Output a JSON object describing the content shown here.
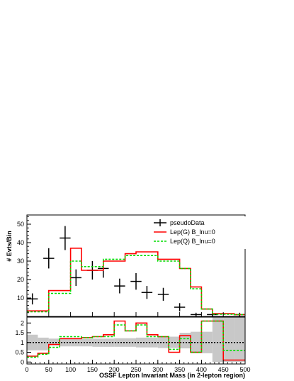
{
  "chart_data": {
    "type": "line",
    "xlabel": "OSSF Lepton Invariant Mass (in 2-lepton region)",
    "ylabel": "# Evts/Bin",
    "bin_edges": [
      0,
      25,
      50,
      75,
      100,
      125,
      150,
      175,
      200,
      225,
      250,
      275,
      300,
      325,
      350,
      375,
      400,
      425,
      450,
      475,
      500
    ],
    "x_ticks": [
      "0",
      "50",
      "100",
      "150",
      "200",
      "250",
      "300",
      "350",
      "400",
      "450",
      "500"
    ],
    "top_panel": {
      "ylim": [
        0,
        55
      ],
      "y_ticks": [
        "10",
        "20",
        "30",
        "40",
        "50"
      ],
      "series": [
        {
          "name": "pseudoData",
          "style": "points",
          "x": [
            12.5,
            50,
            87.5,
            112.5,
            150,
            175,
            212.5,
            250,
            275,
            312.5,
            350,
            387.5,
            425,
            487.5
          ],
          "y": [
            9.5,
            31.5,
            42.5,
            21,
            25,
            26,
            16.5,
            19,
            13,
            12,
            5,
            1,
            1,
            1
          ],
          "y_err": [
            3,
            5.5,
            6.5,
            4.5,
            5,
            5,
            4,
            4.5,
            3.5,
            3.5,
            2.2,
            1,
            1,
            1
          ],
          "x_err": [
            12.5,
            12.5,
            12.5,
            12.5,
            12.5,
            12.5,
            12.5,
            12.5,
            12.5,
            12.5,
            12.5,
            12.5,
            12.5,
            12.5
          ],
          "color": "#000000"
        },
        {
          "name": "Lep(G) B_lnu=0",
          "style": "solid-step",
          "values": [
            3,
            3,
            14,
            14,
            37,
            25,
            25,
            30,
            30,
            34,
            35,
            35,
            31,
            31,
            26,
            16,
            4,
            1.5,
            1.5,
            1
          ],
          "color": "#ff0000"
        },
        {
          "name": "Lep(Q) B_lnu=0",
          "style": "dashed-step",
          "values": [
            2.5,
            2.5,
            12.5,
            12.5,
            30,
            27,
            27,
            31,
            31,
            33,
            33,
            33,
            30,
            30,
            26,
            15,
            4,
            1.2,
            1.2,
            1
          ],
          "color": "#00dd00"
        }
      ]
    },
    "ratio_panel": {
      "ylim": [
        -0.1,
        2.3
      ],
      "y_ticks": [
        "0",
        "0.5",
        "1",
        "1.5",
        "2"
      ],
      "reference_line": 1,
      "band_low": [
        0.6,
        0.6,
        0.85,
        0.8,
        0.8,
        0.8,
        0.78,
        0.78,
        0.78,
        0.78,
        0.75,
        0.75,
        0.72,
        0.72,
        0.7,
        0.45,
        0.45,
        0.0,
        0.0,
        0.0
      ],
      "band_high": [
        1.4,
        1.25,
        1.2,
        1.2,
        1.18,
        1.18,
        1.2,
        1.2,
        1.22,
        1.22,
        1.25,
        1.25,
        1.3,
        1.3,
        1.5,
        1.55,
        1.55,
        2.3,
        2.3,
        2.3
      ],
      "series": [
        {
          "name": "Lep(G) B_lnu=0",
          "style": "solid-step",
          "values": [
            0.3,
            0.45,
            0.9,
            1.2,
            1.2,
            1.25,
            1.3,
            1.4,
            2.1,
            1.6,
            2.0,
            1.4,
            1.3,
            0.5,
            1.35,
            0.5,
            2.1,
            2.1,
            0.1,
            0.1
          ],
          "color": "#ff0000"
        },
        {
          "name": "Lep(Q) B_lnu=0",
          "style": "dashed-step",
          "values": [
            0.25,
            0.4,
            0.75,
            1.3,
            1.3,
            1.25,
            1.3,
            1.3,
            1.9,
            1.6,
            1.9,
            1.3,
            1.3,
            0.65,
            1.2,
            0.5,
            2.1,
            2.1,
            0.6,
            0.6
          ],
          "color": "#00dd00"
        }
      ]
    },
    "legend": {
      "placement": "top-right",
      "entries": [
        "pseudoData",
        "Lep(G) B_lnu=0",
        "Lep(Q) B_lnu=0"
      ]
    }
  }
}
